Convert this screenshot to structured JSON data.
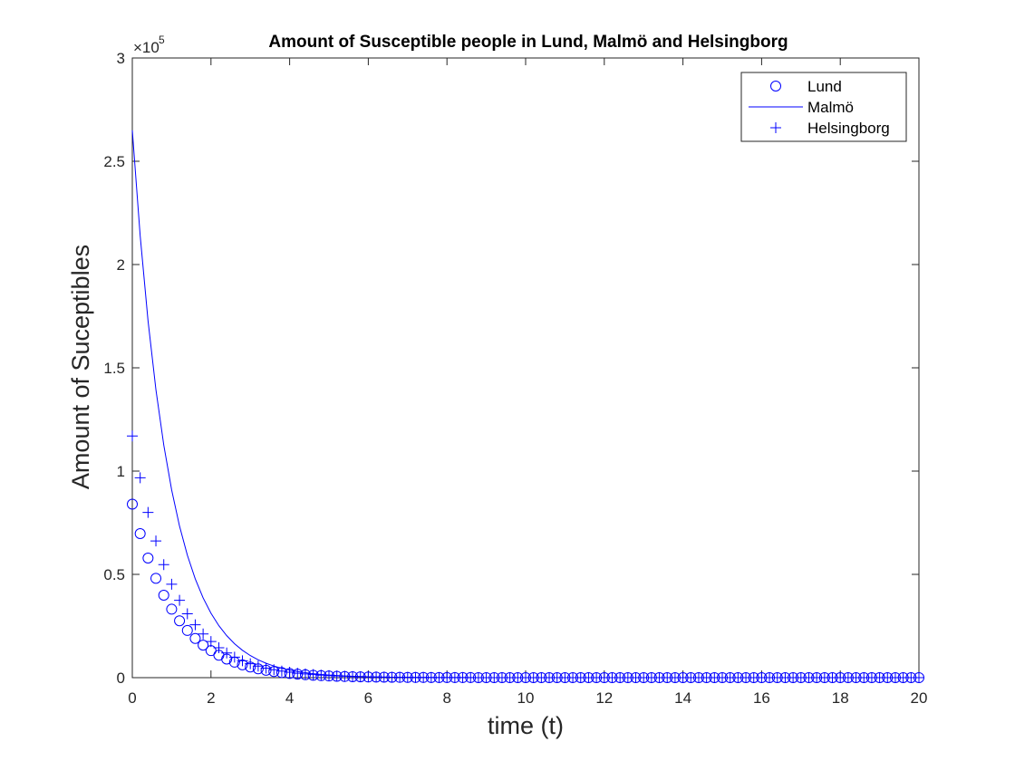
{
  "chart_data": {
    "type": "line",
    "title": "Amount of Susceptible people in Lund, Malmö and Helsingborg",
    "xlabel": "time (t)",
    "ylabel": "Amount of Suceptibles",
    "y_exponent_label": "×10",
    "y_exponent": "5",
    "xlim": [
      0,
      20
    ],
    "ylim": [
      0,
      300000
    ],
    "xticks": [
      "0",
      "2",
      "4",
      "6",
      "8",
      "10",
      "12",
      "14",
      "16",
      "18",
      "20"
    ],
    "yticks": [
      "0",
      "0.5",
      "1",
      "1.5",
      "2",
      "2.5",
      "3"
    ],
    "legend_position": "top-right",
    "grid": false,
    "t_start": 0,
    "t_end": 20,
    "t_step": 0.2,
    "series": [
      {
        "name": "Lund",
        "marker": "circle",
        "line": false,
        "y0": 84000,
        "decay_rate": 0.93,
        "color": "#0000ff"
      },
      {
        "name": "Malmö",
        "marker": "none",
        "line": true,
        "y0": 265000,
        "decay_rate": 1.07,
        "color": "#0000ff"
      },
      {
        "name": "Helsingborg",
        "marker": "plus",
        "line": false,
        "y0": 117000,
        "decay_rate": 0.95,
        "color": "#0000ff"
      }
    ]
  }
}
